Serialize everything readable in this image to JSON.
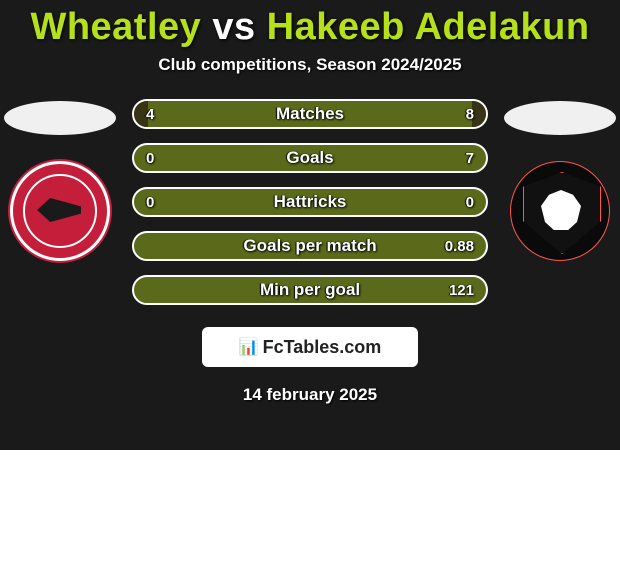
{
  "title": {
    "text_left": "Wheatley",
    "text_vs": " vs ",
    "text_right": "Hakeeb Adelakun",
    "color_left": "#b6e017",
    "color_vs": "#ffffff",
    "color_right": "#b6e017"
  },
  "subtitle": "Club competitions, Season 2024/2025",
  "rows": [
    {
      "label": "Matches",
      "left": "4",
      "right": "8",
      "left_pct": 4,
      "right_pct": 4
    },
    {
      "label": "Goals",
      "left": "0",
      "right": "7",
      "left_pct": 0,
      "right_pct": 0
    },
    {
      "label": "Hattricks",
      "left": "0",
      "right": "0",
      "left_pct": 0,
      "right_pct": 0
    },
    {
      "label": "Goals per match",
      "left": "",
      "right": "0.88",
      "left_pct": 0,
      "right_pct": 0
    },
    {
      "label": "Min per goal",
      "left": "",
      "right": "121",
      "left_pct": 0,
      "right_pct": 0
    }
  ],
  "brand": {
    "icon": "📊",
    "text": "FcTables.com"
  },
  "generated": "14 february 2025",
  "colors": {
    "card_bg": "#1a1a1a",
    "bar_bg": "#5a6a1a",
    "bar_fill": "#3a3417"
  }
}
